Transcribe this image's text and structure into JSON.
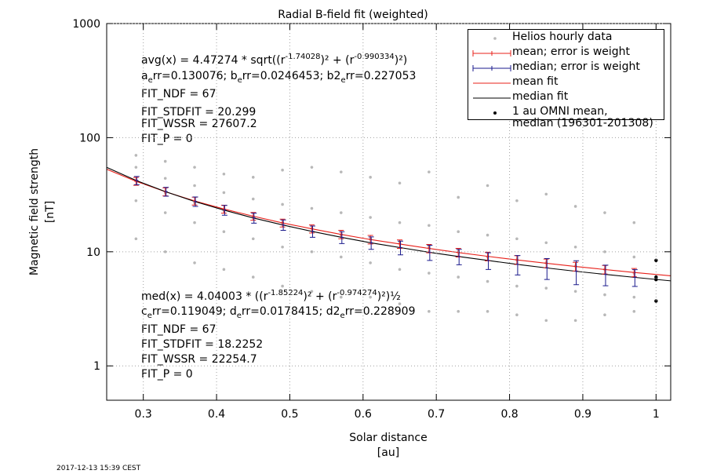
{
  "chart_data": {
    "type": "scatter",
    "title": "Radial B-field fit (weighted)",
    "xlabel": [
      "Solar distance",
      "[au]"
    ],
    "ylabel": [
      "Magnetic field strength",
      "[nT]"
    ],
    "xlim": [
      0.25,
      1.02
    ],
    "xticks": [
      0.3,
      0.4,
      0.5,
      0.6,
      0.7,
      0.8,
      0.9,
      1
    ],
    "ylim": [
      0.5,
      1000
    ],
    "yticks": [
      1,
      10,
      100,
      1000
    ],
    "yscale": "log",
    "grid": true,
    "legend": "top-right",
    "timestamp": "2017-12-13 15:39 CEST",
    "annotations": {
      "avg_fit": [
        "avg(x) = 4.47274 * sqrt((r",
        "-1.74028",
        ")² + (r",
        "-0.990334",
        ")²)"
      ],
      "avg_errors": [
        "a",
        "e",
        "rr=0.130076; b",
        "e",
        "rr=0.0246453; b2",
        "e",
        "rr=0.227053"
      ],
      "avg_stats": [
        "FIT_NDF = 67",
        "FIT_STDFIT = 20.299",
        "FIT_WSSR = 27607.2",
        "FIT_P = 0"
      ],
      "med_fit": [
        "med(x) = 4.04003 * ((r",
        "-1.85224",
        ")² + (r",
        "-0.974274",
        ")²)½"
      ],
      "med_errors": [
        "c",
        "e",
        "rr=0.119049; d",
        "e",
        "rr=0.0178415; d2",
        "e",
        "rr=0.228909"
      ],
      "med_stats": [
        "FIT_NDF = 67",
        "FIT_STDFIT = 18.2252",
        "FIT_WSSR = 22254.7",
        "FIT_P = 0"
      ]
    },
    "series": [
      {
        "name": "Helios hourly data",
        "style": "points",
        "color": "#b8b8b8",
        "x": [
          0.29,
          0.29,
          0.29,
          0.29,
          0.29,
          0.33,
          0.33,
          0.33,
          0.33,
          0.33,
          0.37,
          0.37,
          0.37,
          0.37,
          0.37,
          0.41,
          0.41,
          0.41,
          0.41,
          0.41,
          0.45,
          0.45,
          0.45,
          0.45,
          0.45,
          0.49,
          0.49,
          0.49,
          0.49,
          0.49,
          0.53,
          0.53,
          0.53,
          0.53,
          0.53,
          0.57,
          0.57,
          0.57,
          0.57,
          0.57,
          0.61,
          0.61,
          0.61,
          0.61,
          0.61,
          0.65,
          0.65,
          0.65,
          0.65,
          0.65,
          0.69,
          0.69,
          0.69,
          0.69,
          0.69,
          0.73,
          0.73,
          0.73,
          0.73,
          0.73,
          0.77,
          0.77,
          0.77,
          0.77,
          0.77,
          0.81,
          0.81,
          0.81,
          0.81,
          0.81,
          0.85,
          0.85,
          0.85,
          0.85,
          0.85,
          0.89,
          0.89,
          0.89,
          0.89,
          0.89,
          0.93,
          0.93,
          0.93,
          0.93,
          0.93,
          0.97,
          0.97,
          0.97,
          0.97,
          0.97
        ],
        "values": [
          70,
          55,
          42,
          28,
          13,
          62,
          44,
          33,
          22,
          10,
          55,
          38,
          27,
          18,
          8,
          48,
          33,
          23,
          15,
          7,
          45,
          29,
          20,
          13,
          6,
          52,
          26,
          18,
          11,
          5,
          55,
          24,
          16,
          10,
          4.5,
          50,
          22,
          14,
          9,
          4,
          45,
          20,
          13,
          8,
          4,
          40,
          18,
          12,
          7,
          3.5,
          50,
          17,
          11,
          6.5,
          3,
          30,
          15,
          10,
          6,
          3,
          38,
          14,
          9,
          5.5,
          3,
          28,
          13,
          8.5,
          5,
          2.8,
          32,
          12,
          8,
          4.8,
          2.5,
          25,
          11,
          7.5,
          4.5,
          2.5,
          22,
          10,
          7,
          4.2,
          2.8,
          18,
          9,
          6.5,
          4,
          3
        ]
      },
      {
        "name": "mean; error is weight",
        "style": "errorbars",
        "color": "#e8201a",
        "x": [
          0.29,
          0.33,
          0.37,
          0.41,
          0.45,
          0.49,
          0.53,
          0.57,
          0.61,
          0.65,
          0.69,
          0.73,
          0.77,
          0.81,
          0.85,
          0.89,
          0.93,
          0.97
        ],
        "values": [
          41.5,
          33.6,
          27.9,
          23.7,
          20.5,
          17.9,
          15.9,
          14.2,
          12.8,
          11.7,
          10.7,
          9.85,
          9.12,
          8.49,
          7.93,
          7.43,
          6.99,
          6.59
        ],
        "errors": [
          3.3,
          2.7,
          2.2,
          1.9,
          1.6,
          1.4,
          1.3,
          1.2,
          1.1,
          1.0,
          0.9,
          0.85,
          0.8,
          0.75,
          0.7,
          0.65,
          0.6,
          0.55
        ]
      },
      {
        "name": "median; error is weight",
        "style": "errorbars",
        "color": "#1a1a8c",
        "x": [
          0.29,
          0.33,
          0.37,
          0.41,
          0.45,
          0.49,
          0.53,
          0.57,
          0.61,
          0.65,
          0.69,
          0.73,
          0.77,
          0.81,
          0.85,
          0.89,
          0.93,
          0.97
        ],
        "values": [
          42.2,
          33.7,
          27.6,
          23.2,
          19.8,
          17.2,
          15.1,
          13.4,
          12.0,
          10.9,
          9.9,
          9.1,
          8.4,
          7.76,
          7.22,
          6.75,
          6.34,
          5.97
        ],
        "errors": [
          3.5,
          3.0,
          2.6,
          2.3,
          2.0,
          1.8,
          1.7,
          1.6,
          1.5,
          1.5,
          1.5,
          1.4,
          1.4,
          1.5,
          1.5,
          1.6,
          1.3,
          1.0
        ]
      },
      {
        "name": "mean fit",
        "style": "line",
        "color": "#e8201a",
        "x": [
          0.25,
          0.29,
          0.33,
          0.37,
          0.41,
          0.45,
          0.49,
          0.53,
          0.57,
          0.61,
          0.65,
          0.69,
          0.73,
          0.77,
          0.81,
          0.85,
          0.89,
          0.93,
          0.97,
          1.02
        ],
        "values": [
          52.9,
          41.5,
          33.6,
          27.9,
          23.7,
          20.5,
          17.9,
          15.9,
          14.2,
          12.8,
          11.7,
          10.7,
          9.85,
          9.12,
          8.49,
          7.93,
          7.43,
          6.99,
          6.59,
          6.16
        ]
      },
      {
        "name": "median fit",
        "style": "line",
        "color": "#000000",
        "x": [
          0.25,
          0.29,
          0.33,
          0.37,
          0.41,
          0.45,
          0.49,
          0.53,
          0.57,
          0.61,
          0.65,
          0.69,
          0.73,
          0.77,
          0.81,
          0.85,
          0.89,
          0.93,
          0.97,
          1.02
        ],
        "values": [
          54.9,
          42.2,
          33.7,
          27.6,
          23.2,
          19.8,
          17.2,
          15.1,
          13.4,
          12.0,
          10.9,
          9.9,
          9.1,
          8.4,
          7.76,
          7.22,
          6.75,
          6.34,
          5.97,
          5.56
        ]
      },
      {
        "name": "1 au OMNI mean,\nmedian (196301-201308)",
        "style": "dots",
        "color": "#000000",
        "x": [
          1,
          1,
          1,
          1
        ],
        "values": [
          8.4,
          6.0,
          5.7,
          3.7
        ]
      }
    ]
  }
}
